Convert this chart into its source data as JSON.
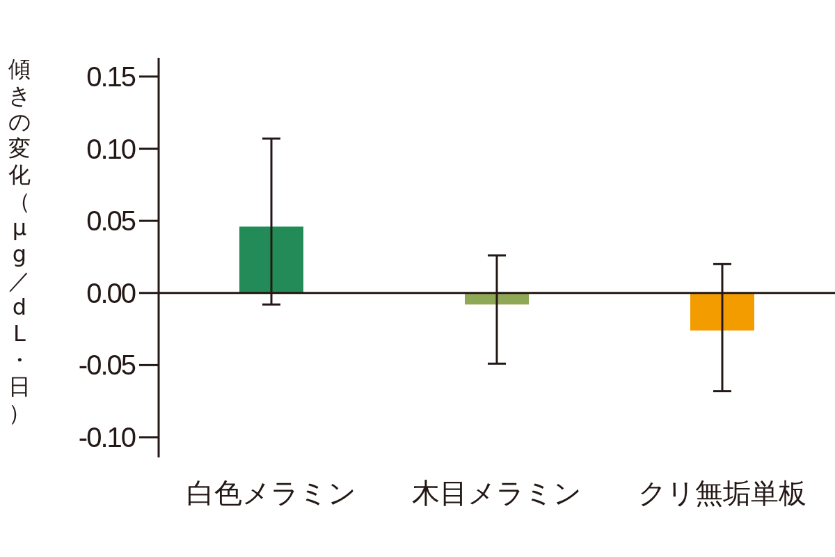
{
  "chart_data": {
    "type": "bar",
    "ylabel": "傾きの変化（μg／dL・日）",
    "categories": [
      "白色メラミン",
      "木目メラミン",
      "クリ無垢単板"
    ],
    "values": [
      0.046,
      -0.008,
      -0.026
    ],
    "colors": [
      "#238b57",
      "#8fa856",
      "#f39c00"
    ],
    "errors": [
      [
        -0.008,
        0.107
      ],
      [
        -0.049,
        0.026
      ],
      [
        -0.068,
        0.02
      ]
    ],
    "ylim": [
      -0.114,
      0.163
    ],
    "yticks": [
      {
        "value": -0.1,
        "label": "-0.10"
      },
      {
        "value": -0.05,
        "label": "-0.05"
      },
      {
        "value": 0,
        "label": "0.00"
      },
      {
        "value": 0.05,
        "label": "0.05"
      },
      {
        "value": 0.1,
        "label": "0.10"
      },
      {
        "value": 0.15,
        "label": "0.15"
      }
    ],
    "ref_lines": [
      {
        "axis": "y",
        "value": 0
      }
    ],
    "grid": false
  }
}
